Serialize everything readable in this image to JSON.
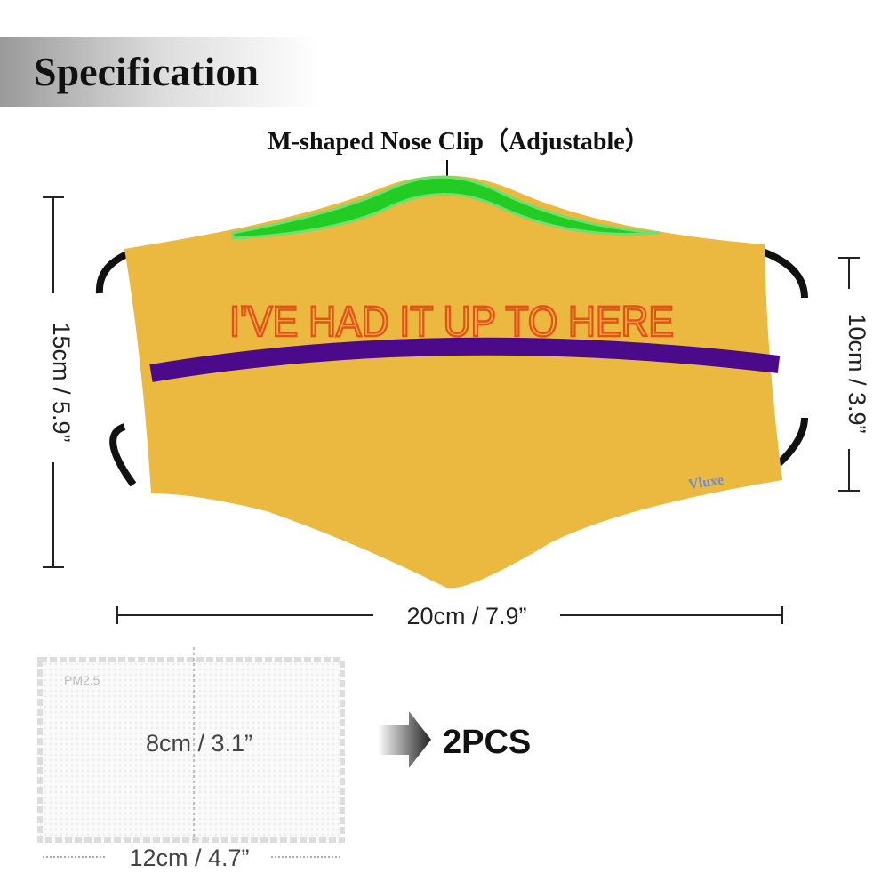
{
  "header": {
    "title": "Specification"
  },
  "nose_clip_label": "M-shaped Nose Clip（Adjustable）",
  "mask": {
    "print_text": "I'VE HAD IT UP TO HERE",
    "brand": "Vluxe"
  },
  "dimensions": {
    "height": "15cm / 5.9”",
    "side_height": "10cm / 3.9”",
    "width": "20cm / 7.9”"
  },
  "filter": {
    "label": "PM2.5",
    "height": "8cm / 3.1”",
    "width": "12cm / 4.7”",
    "quantity": "2PCS"
  }
}
